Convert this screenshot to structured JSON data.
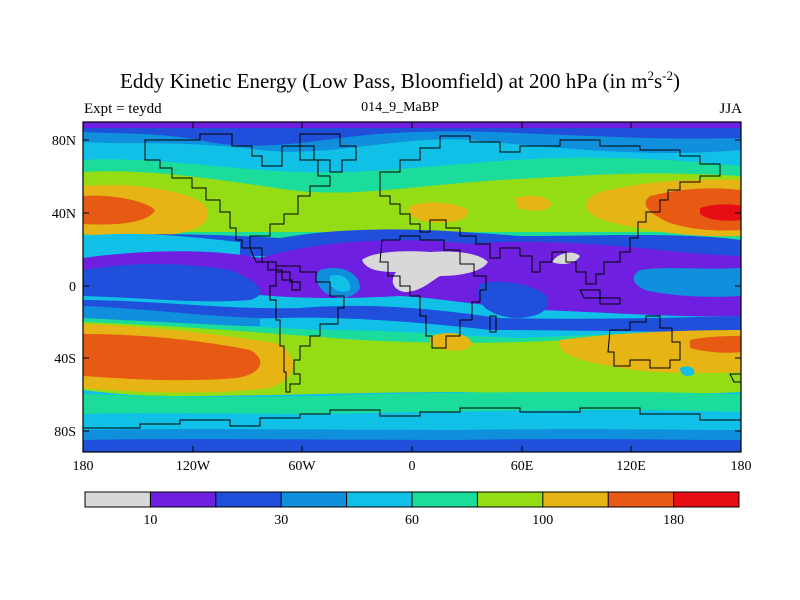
{
  "title": {
    "main": "Eddy Kinetic Energy (Low Pass, Bloomfield) at 200 hPa (in m",
    "sup1": "2",
    "mid": "s",
    "sup2": "-2",
    "end": ")"
  },
  "subtitle": {
    "left": "Expt = teydd",
    "center": "014_9_MaBP",
    "right": "JJA"
  },
  "axes": {
    "x_ticks": [
      "180",
      "120W",
      "60W",
      "0",
      "60E",
      "120E",
      "180"
    ],
    "y_ticks": [
      "80N",
      "40N",
      "0",
      "40S",
      "80S"
    ]
  },
  "colorbar": {
    "colors": [
      "#d8d8d8",
      "#6e1fe0",
      "#1f4fdb",
      "#0f8fdc",
      "#10c0e6",
      "#1cdc9c",
      "#94dc14",
      "#e6b414",
      "#e65a14",
      "#e60e14"
    ],
    "labels": [
      "10",
      "30",
      "60",
      "100",
      "180"
    ]
  },
  "map_colors": {
    "gray": "#d8d8d8",
    "purple": "#6e1fe0",
    "blue": "#1f4fdb",
    "midblue": "#0f8fdc",
    "cyan": "#10c0e6",
    "teal": "#1cdc9c",
    "green": "#94dc14",
    "yellow": "#e6b414",
    "orange": "#e65a14",
    "red": "#e60e14"
  }
}
